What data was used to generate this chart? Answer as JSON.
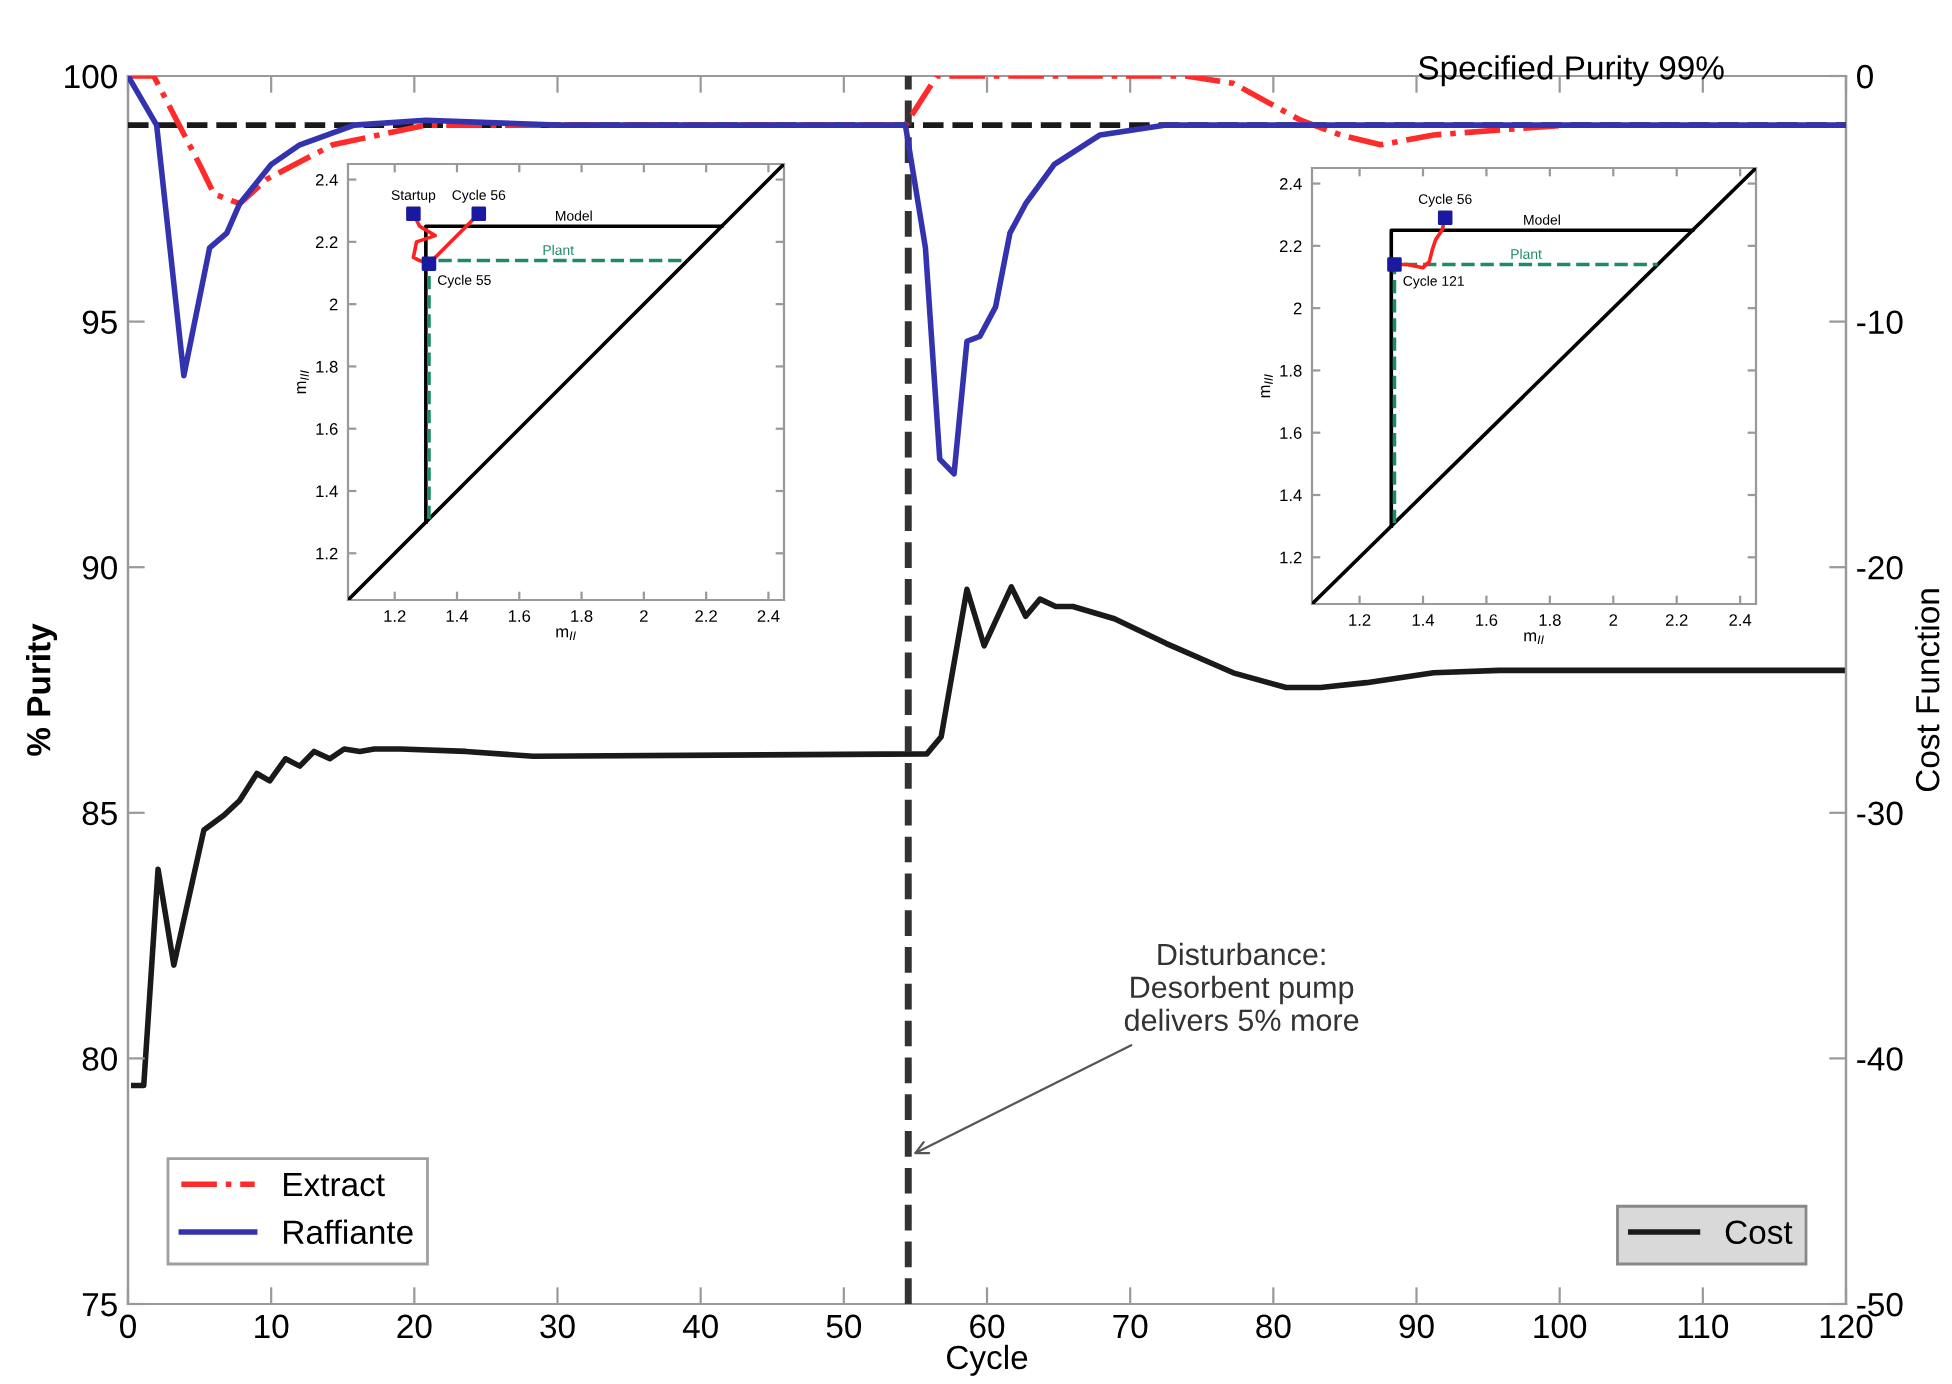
{
  "chart_data": [
    {
      "type": "line",
      "xlabel": "Cycle",
      "ylabel": "% Purity",
      "y2label": "Cost Function",
      "xlim": [
        0,
        120
      ],
      "xticks": [
        0,
        10,
        20,
        30,
        40,
        50,
        60,
        70,
        80,
        90,
        100,
        110,
        120
      ],
      "ylim": [
        75,
        100
      ],
      "yticks": [
        75,
        80,
        85,
        90,
        95,
        100
      ],
      "y2lim": [
        -50,
        0
      ],
      "y2ticks": [
        -50,
        -40,
        -30,
        -20,
        -10,
        0
      ],
      "grid": false,
      "legend": "bottom left",
      "series": [
        {
          "name": "Extract",
          "color": "#ff2a2a",
          "line_style": "dashdot",
          "x": [
            0,
            1.8,
            5,
            6,
            7.8,
            9.7,
            14.3,
            20.8,
            54.3,
            56.5,
            63.3,
            73.9,
            77.2,
            81.9,
            84.7,
            87.5,
            91.2,
            95.8,
            100.5
          ],
          "values": [
            100,
            100,
            98.2,
            97.6,
            97.4,
            97.9,
            98.6,
            99,
            99,
            100,
            100,
            100,
            99.85,
            99.1,
            98.8,
            98.6,
            98.8,
            98.9,
            99
          ]
        },
        {
          "name": "Raffiante",
          "color": "#3333b0",
          "line_style": "solid",
          "x": [
            0,
            2,
            3.9,
            5.7,
            6.9,
            7.8,
            10,
            12,
            15.8,
            20.8,
            30,
            54.3,
            55.7,
            56.7,
            57.7,
            58.6,
            59.5,
            60.6,
            61.6,
            62.7,
            64.7,
            67.9,
            72.5,
            120
          ],
          "values": [
            100,
            99,
            93.9,
            96.5,
            96.8,
            97.4,
            98.2,
            98.6,
            99,
            99.1,
            99,
            99,
            96.5,
            92.2,
            91.9,
            94.6,
            94.7,
            95.3,
            96.8,
            97.4,
            98.2,
            98.8,
            99,
            99
          ]
        },
        {
          "name": "Cost",
          "color": "#1a1a1a",
          "line_style": "solid",
          "axis": "y2",
          "x": [
            0.4,
            1.1,
            2.1,
            3.2,
            5.3,
            6.7,
            7.8,
            9,
            9.9,
            11,
            12,
            13,
            14.1,
            15.1,
            16.2,
            17.2,
            19,
            23.6,
            28.3,
            55.8,
            56.8,
            58.6,
            59.8,
            61.7,
            62.7,
            63.7,
            64.8,
            66,
            68.9,
            72.5,
            77.2,
            80.9,
            83.3,
            86.5,
            91.2,
            95.8,
            100.5,
            120
          ],
          "values": [
            -41.1,
            -41.1,
            -32.3,
            -36.2,
            -30.7,
            -30.1,
            -29.5,
            -28.4,
            -28.7,
            -27.8,
            -28.1,
            -27.5,
            -27.8,
            -27.4,
            -27.5,
            -27.4,
            -27.4,
            -27.5,
            -27.7,
            -27.6,
            -26.9,
            -20.9,
            -23.2,
            -20.8,
            -22,
            -21.3,
            -21.6,
            -21.6,
            -22.1,
            -23.1,
            -24.3,
            -24.9,
            -24.9,
            -24.7,
            -24.3,
            -24.2,
            -24.2,
            -24.2
          ]
        }
      ],
      "ref_lines": [
        {
          "axis": "y",
          "value": 99,
          "label": "Specified Purity 99%",
          "line_style": "dashed",
          "color": "#1a1a1a"
        },
        {
          "axis": "x",
          "value": 54.5,
          "label": null,
          "line_style": "dashed",
          "color": "#333333"
        }
      ],
      "annotations": [
        {
          "text": "Disturbance:\nDesorbent pump\ndelivers 5% more",
          "x": 54.5,
          "y": 78
        }
      ]
    },
    {
      "type": "line",
      "xlabel": "m$_{II}$",
      "ylabel": "m$_{III}$",
      "xlim": [
        1.05,
        2.45
      ],
      "ylim": [
        1.05,
        2.45
      ],
      "xticks": [
        1.2,
        1.4,
        1.6,
        1.8,
        2,
        2.2,
        2.4
      ],
      "yticks": [
        1.2,
        1.4,
        1.6,
        1.8,
        2,
        2.2,
        2.4
      ],
      "grid": false,
      "series": [
        {
          "color": "#000000",
          "line_style": "solid",
          "x": [
            1.05,
            2.45
          ],
          "values": [
            1.05,
            2.45
          ]
        },
        {
          "name": "Model",
          "color": "#000000",
          "line_style": "solid",
          "x": [
            1.3,
            1.3,
            2.25
          ],
          "values": [
            1.3,
            2.25,
            2.25
          ]
        },
        {
          "name": "Plant",
          "color": "#1f8a6a",
          "line_style": "dashed",
          "x": [
            1.31,
            1.31,
            2.14
          ],
          "values": [
            1.31,
            2.14,
            2.14
          ]
        },
        {
          "color": "#ff2020",
          "line_style": "solid",
          "x": [
            1.26,
            1.28,
            1.33,
            1.27,
            1.26,
            1.28,
            1.31,
            1.47
          ],
          "values": [
            2.29,
            2.25,
            2.22,
            2.2,
            2.15,
            2.14,
            2.13,
            2.29
          ]
        },
        {
          "type": "scatter",
          "color": "#1a1aa0",
          "marker": "square",
          "x": [
            1.26,
            1.47,
            1.31
          ],
          "values": [
            2.29,
            2.29,
            2.13
          ]
        }
      ],
      "annotations": [
        {
          "text": "Startup",
          "x": 1.26,
          "y": 2.29
        },
        {
          "text": "Cycle 56",
          "x": 1.47,
          "y": 2.29
        },
        {
          "text": "Cycle 55",
          "x": 1.31,
          "y": 2.13
        }
      ]
    },
    {
      "type": "line",
      "xlabel": "m$_{II}$",
      "ylabel": "m$_{III}$",
      "xlim": [
        1.05,
        2.45
      ],
      "ylim": [
        1.05,
        2.45
      ],
      "xticks": [
        1.2,
        1.4,
        1.6,
        1.8,
        2,
        2.2,
        2.4
      ],
      "yticks": [
        1.2,
        1.4,
        1.6,
        1.8,
        2,
        2.2,
        2.4
      ],
      "grid": false,
      "series": [
        {
          "color": "#000000",
          "line_style": "solid",
          "x": [
            1.05,
            2.45
          ],
          "values": [
            1.05,
            2.45
          ]
        },
        {
          "name": "Model",
          "color": "#000000",
          "line_style": "solid",
          "x": [
            1.3,
            1.3,
            2.25
          ],
          "values": [
            1.3,
            2.25,
            2.25
          ]
        },
        {
          "name": "Plant",
          "color": "#1f8a6a",
          "line_style": "dashed",
          "x": [
            1.31,
            1.31,
            2.14
          ],
          "values": [
            1.31,
            2.14,
            2.14
          ]
        },
        {
          "color": "#ff2020",
          "line_style": "solid",
          "x": [
            1.47,
            1.46,
            1.44,
            1.43,
            1.42,
            1.4,
            1.35,
            1.31
          ],
          "values": [
            2.29,
            2.25,
            2.22,
            2.19,
            2.15,
            2.13,
            2.14,
            2.14
          ]
        },
        {
          "type": "scatter",
          "color": "#1a1aa0",
          "marker": "square",
          "x": [
            1.47,
            1.31
          ],
          "values": [
            2.29,
            2.14
          ]
        }
      ],
      "annotations": [
        {
          "text": "Cycle 56",
          "x": 1.47,
          "y": 2.29
        },
        {
          "text": "Cycle 121",
          "x": 1.31,
          "y": 2.14
        }
      ]
    }
  ]
}
